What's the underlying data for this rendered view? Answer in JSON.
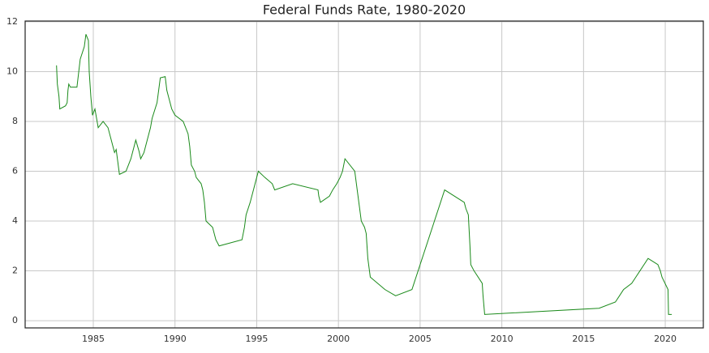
{
  "chart_data": {
    "type": "line",
    "title": "Federal Funds Rate, 1980-2020",
    "x": [
      1982.75,
      1982.8,
      1982.9,
      1982.95,
      1983.3,
      1983.4,
      1983.45,
      1983.5,
      1983.6,
      1984.0,
      1984.2,
      1984.45,
      1984.55,
      1984.7,
      1984.75,
      1984.85,
      1984.95,
      1985.1,
      1985.3,
      1985.6,
      1985.9,
      1986.1,
      1986.3,
      1986.4,
      1986.5,
      1986.6,
      1987.0,
      1987.3,
      1987.4,
      1987.6,
      1987.8,
      1987.9,
      1988.1,
      1988.3,
      1988.5,
      1988.6,
      1988.9,
      1989.1,
      1989.4,
      1989.5,
      1989.6,
      1989.8,
      1990.0,
      1990.5,
      1990.8,
      1990.9,
      1991.0,
      1991.2,
      1991.3,
      1991.6,
      1991.7,
      1991.8,
      1991.9,
      1992.3,
      1992.5,
      1992.7,
      1994.1,
      1994.25,
      1994.35,
      1994.6,
      1994.9,
      1995.1,
      1995.5,
      1995.95,
      1996.1,
      1997.2,
      1998.75,
      1998.8,
      1998.9,
      1999.45,
      1999.65,
      1999.9,
      2000.1,
      2000.25,
      2000.4,
      2001.0,
      2001.1,
      2001.2,
      2001.3,
      2001.4,
      2001.6,
      2001.7,
      2001.75,
      2001.8,
      2001.9,
      2001.95,
      2002.85,
      2003.5,
      2004.5,
      2004.625,
      2004.75,
      2004.875,
      2005.0,
      2005.125,
      2005.25,
      2005.375,
      2005.5,
      2005.625,
      2005.75,
      2005.875,
      2006.0,
      2006.125,
      2006.25,
      2006.375,
      2006.5,
      2007.7,
      2007.8,
      2007.95,
      2008.05,
      2008.1,
      2008.3,
      2008.8,
      2008.85,
      2008.95,
      2015.95,
      2016.95,
      2017.2,
      2017.45,
      2017.95,
      2018.2,
      2018.45,
      2018.7,
      2018.95,
      2019.55,
      2019.7,
      2019.8,
      2020.17,
      2020.2,
      2020.4
    ],
    "series": [
      {
        "color": "#1a8a1a",
        "values": [
          10.25,
          9.5,
          9.0,
          8.5,
          8.625,
          8.75,
          9.25,
          9.5,
          9.375,
          9.375,
          10.5,
          11.0,
          11.5,
          11.25,
          10.0,
          9.0,
          8.25,
          8.5,
          7.75,
          8.0,
          7.75,
          7.25,
          6.75,
          6.875,
          6.375,
          5.875,
          6.0,
          6.5,
          6.75,
          7.25,
          6.8,
          6.5,
          6.75,
          7.25,
          7.75,
          8.125,
          8.75,
          9.75,
          9.8,
          9.25,
          9.0,
          8.5,
          8.25,
          8.0,
          7.5,
          7.0,
          6.25,
          6.0,
          5.75,
          5.5,
          5.25,
          4.75,
          4.0,
          3.75,
          3.25,
          3.0,
          3.25,
          3.75,
          4.25,
          4.75,
          5.5,
          6.0,
          5.75,
          5.5,
          5.25,
          5.5,
          5.25,
          5.0,
          4.75,
          5.0,
          5.25,
          5.5,
          5.75,
          6.0,
          6.5,
          6.0,
          5.5,
          5.0,
          4.5,
          4.0,
          3.75,
          3.5,
          3.0,
          2.5,
          2.0,
          1.75,
          1.25,
          1.0,
          1.25,
          1.5,
          1.75,
          2.0,
          2.25,
          2.5,
          2.75,
          3.0,
          3.25,
          3.5,
          3.75,
          4.0,
          4.25,
          4.5,
          4.75,
          5.0,
          5.25,
          4.75,
          4.5,
          4.25,
          3.0,
          2.25,
          2.0,
          1.5,
          1.0,
          0.25,
          0.5,
          0.75,
          1.0,
          1.25,
          1.5,
          1.75,
          2.0,
          2.25,
          2.5,
          2.25,
          2.0,
          1.75,
          1.25,
          0.25,
          0.25
        ]
      }
    ],
    "xlim": [
      1980.83,
      2022.33
    ],
    "xticks": [
      1985,
      1990,
      1995,
      2000,
      2005,
      2010,
      2015,
      2020
    ],
    "ylim": [
      -0.29,
      12.03
    ],
    "yticks": [
      0,
      2,
      4,
      6,
      8,
      10,
      12
    ],
    "grid": true
  }
}
